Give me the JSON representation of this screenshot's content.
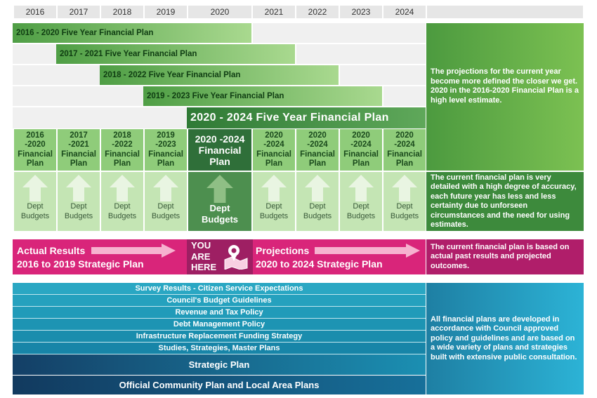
{
  "years": [
    "2016",
    "2017",
    "2018",
    "2019",
    "2020",
    "2021",
    "2022",
    "2023",
    "2024"
  ],
  "plans": [
    "2016 - 2020 Five Year Financial Plan",
    "2017 - 2021 Five Year Financial Plan",
    "2018 - 2022 Five Year Financial Plan",
    "2019 - 2023 Five Year Financial Plan",
    "2020 - 2024 Five Year Financial Plan"
  ],
  "fin_plans": [
    [
      "2016",
      "-2020",
      "Financial",
      "Plan"
    ],
    [
      "2017",
      "-2021",
      "Financial",
      "Plan"
    ],
    [
      "2018",
      "-2022",
      "Financial",
      "Plan"
    ],
    [
      "2019",
      "-2023",
      "Financial",
      "Plan"
    ],
    [
      "2020 -2024",
      "Financial",
      "Plan"
    ],
    [
      "2020",
      "-2024",
      "Financial",
      "Plan"
    ],
    [
      "2020",
      "-2024",
      "Financial",
      "Plan"
    ],
    [
      "2020",
      "-2024",
      "Financial",
      "Plan"
    ],
    [
      "2020",
      "-2024",
      "Financial",
      "Plan"
    ]
  ],
  "budgets": [
    "Dept",
    "Budgets"
  ],
  "side_notes": {
    "top": "The projections for the current year become more defined the closer we get. 2020 in the 2016-2020 Financial Plan is a high level estimate.",
    "middle": "The current financial plan is very detailed with a high degree of accuracy, each future year has less and less certainty due to unforseen circumstances and the need for using estimates.",
    "pink": "The current financial plan is based on actual past results and projected outcomes.",
    "bottom": "All financial plans are developed in accordance with Council approved policy and guidelines and are based on a wide variety of plans and strategies built with extensive public consultation."
  },
  "actual": {
    "line1": "Actual Results",
    "line2": "2016 to 2019 Strategic Plan"
  },
  "you_are_here": [
    "YOU",
    "ARE",
    "HERE"
  ],
  "projections": {
    "line1": "Projections",
    "line2": "2020 to 2024 Strategic Plan"
  },
  "foundation_rows": [
    "Survey Results - Citizen Service Expectations",
    "Council's Budget Guidelines",
    "Revenue and Tax Policy",
    "Debt Management Policy",
    "Infrastructure Replacement Funding Strategy",
    "Studies, Strategies, Master Plans",
    "Strategic Plan",
    "Official Community Plan and Local Area Plans"
  ],
  "colors": {
    "green_dark": "#2f6f39",
    "green_light": "#8fcc7a",
    "pink": "#d9257a",
    "blue": "#1aa3c4",
    "navy": "#17426b"
  }
}
